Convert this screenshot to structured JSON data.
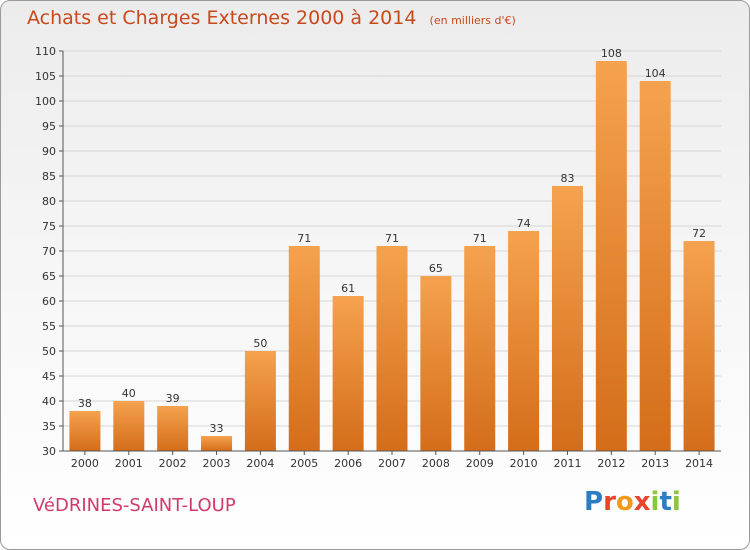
{
  "header": {
    "title": "Achats et Charges Externes 2000 à 2014",
    "subtitle": "(en milliers d'€)"
  },
  "footer": {
    "commune": "VéDRINES-SAINT-LOUP",
    "logo_letters": [
      "P",
      "r",
      "o",
      "x",
      "i",
      "t",
      "i"
    ],
    "logo_colors": [
      "#2b7ec2",
      "#e8452c",
      "#f29a1b",
      "#e8452c",
      "#8cc63f",
      "#2b7ec2",
      "#8cc63f"
    ]
  },
  "colors": {
    "bar_top": "#f5a24e",
    "bar_bottom": "#d46d1a",
    "grid": "#d6d6d6",
    "axis_text": "#333333"
  },
  "chart_data": {
    "type": "bar",
    "title": "Achats et Charges Externes 2000 à 2014",
    "subtitle": "(en milliers d'€)",
    "xlabel": "",
    "ylabel": "",
    "ylim": [
      30,
      110
    ],
    "yticks": [
      30,
      35,
      40,
      45,
      50,
      55,
      60,
      65,
      70,
      75,
      80,
      85,
      90,
      95,
      100,
      105,
      110
    ],
    "grid": true,
    "categories": [
      "2000",
      "2001",
      "2002",
      "2003",
      "2004",
      "2005",
      "2006",
      "2007",
      "2008",
      "2009",
      "2010",
      "2011",
      "2012",
      "2013",
      "2014"
    ],
    "values": [
      38,
      40,
      39,
      33,
      50,
      71,
      61,
      71,
      65,
      71,
      74,
      83,
      108,
      104,
      72
    ]
  }
}
